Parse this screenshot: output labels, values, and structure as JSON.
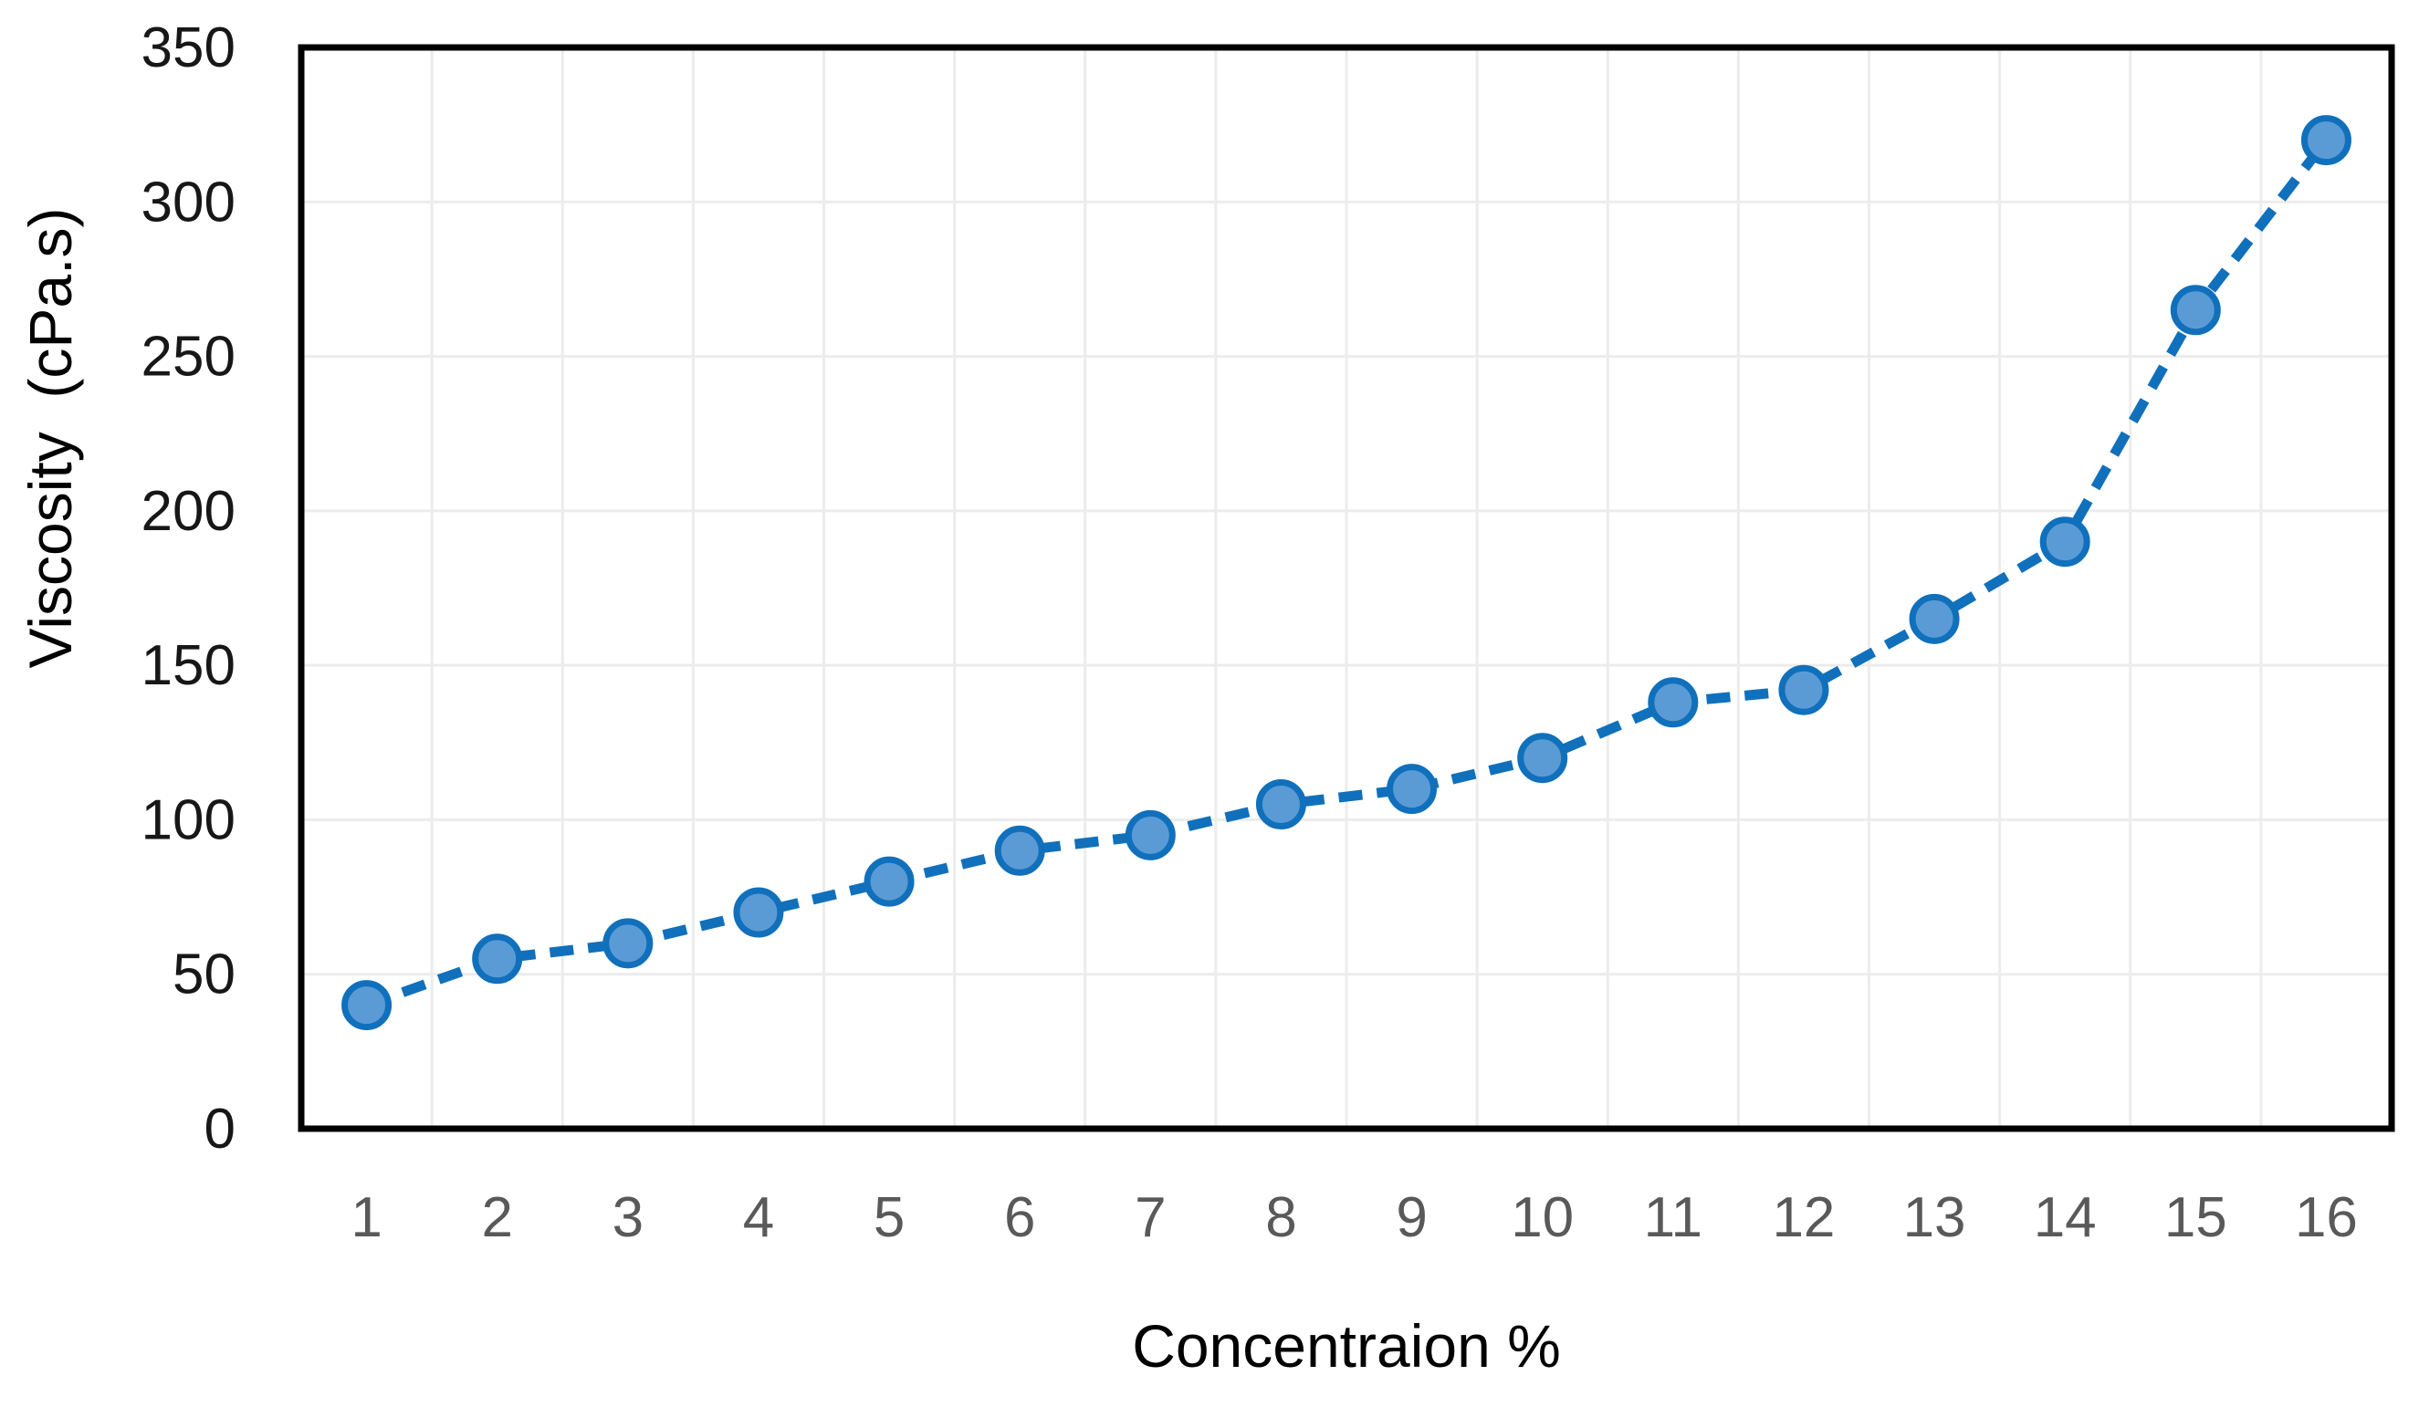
{
  "chart_data": {
    "type": "line",
    "title": "",
    "xlabel": "Concentraion %",
    "ylabel": "Viscosity  (cPa.s)",
    "x_categories": [
      "1",
      "2",
      "3",
      "4",
      "5",
      "6",
      "7",
      "8",
      "9",
      "10",
      "11",
      "12",
      "13",
      "14",
      "15",
      "16"
    ],
    "series": [
      {
        "name": "Viscosity",
        "values": [
          40,
          55,
          60,
          70,
          80,
          90,
          95,
          105,
          110,
          120,
          138,
          142,
          165,
          190,
          265,
          320
        ]
      }
    ],
    "ylim": [
      0,
      350
    ],
    "y_ticks": [
      0,
      50,
      100,
      150,
      200,
      250,
      300,
      350
    ],
    "grid": "horizontal-and-vertical",
    "legend": "none",
    "line_style": "dashed",
    "marker": "circle",
    "colors": {
      "line": "#1070BC",
      "marker_fill": "#5B9BD5",
      "marker_edge": "#1070BC",
      "gridline": "#ECECEC",
      "plot_border": "#000000",
      "x_tick_label": "#595959",
      "y_tick_label": "#171717",
      "axis_title": "#000000",
      "background": "#FFFFFF"
    }
  }
}
